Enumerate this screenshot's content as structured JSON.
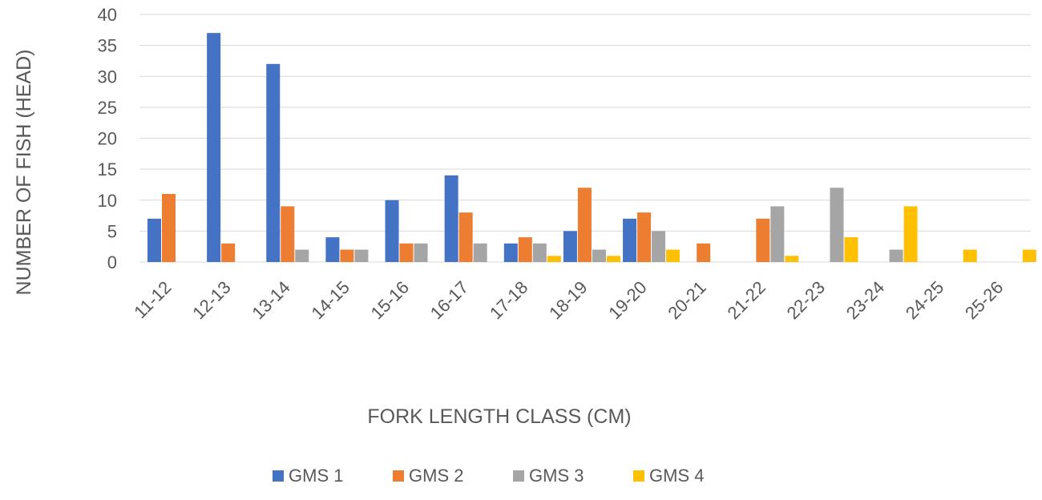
{
  "chart_data": {
    "type": "bar",
    "xlabel": "FORK LENGTH CLASS (CM)",
    "ylabel": "NUMBER OF FISH (HEAD)",
    "ylim": [
      0,
      40
    ],
    "yticks": [
      0,
      5,
      10,
      15,
      20,
      25,
      30,
      35,
      40
    ],
    "grid": true,
    "legend_position": "bottom",
    "categories": [
      "11-12",
      "12-13",
      "13-14",
      "14-15",
      "15-16",
      "16-17",
      "17-18",
      "18-19",
      "19-20",
      "20-21",
      "21-22",
      "22-23",
      "23-24",
      "24-25",
      "25-26"
    ],
    "series": [
      {
        "name": "GMS 1",
        "color": "#4472c4",
        "values": [
          7,
          37,
          32,
          4,
          10,
          14,
          3,
          5,
          7,
          0,
          0,
          0,
          0,
          0,
          0
        ]
      },
      {
        "name": "GMS 2",
        "color": "#ed7d31",
        "values": [
          11,
          3,
          9,
          2,
          3,
          8,
          4,
          12,
          8,
          3,
          7,
          0,
          0,
          0,
          0
        ]
      },
      {
        "name": "GMS 3",
        "color": "#a5a5a5",
        "values": [
          0,
          0,
          2,
          2,
          3,
          3,
          3,
          2,
          5,
          0,
          9,
          12,
          2,
          0,
          0
        ]
      },
      {
        "name": "GMS 4",
        "color": "#ffc000",
        "values": [
          0,
          0,
          0,
          0,
          0,
          0,
          1,
          1,
          2,
          0,
          1,
          4,
          9,
          2,
          2
        ]
      }
    ]
  }
}
